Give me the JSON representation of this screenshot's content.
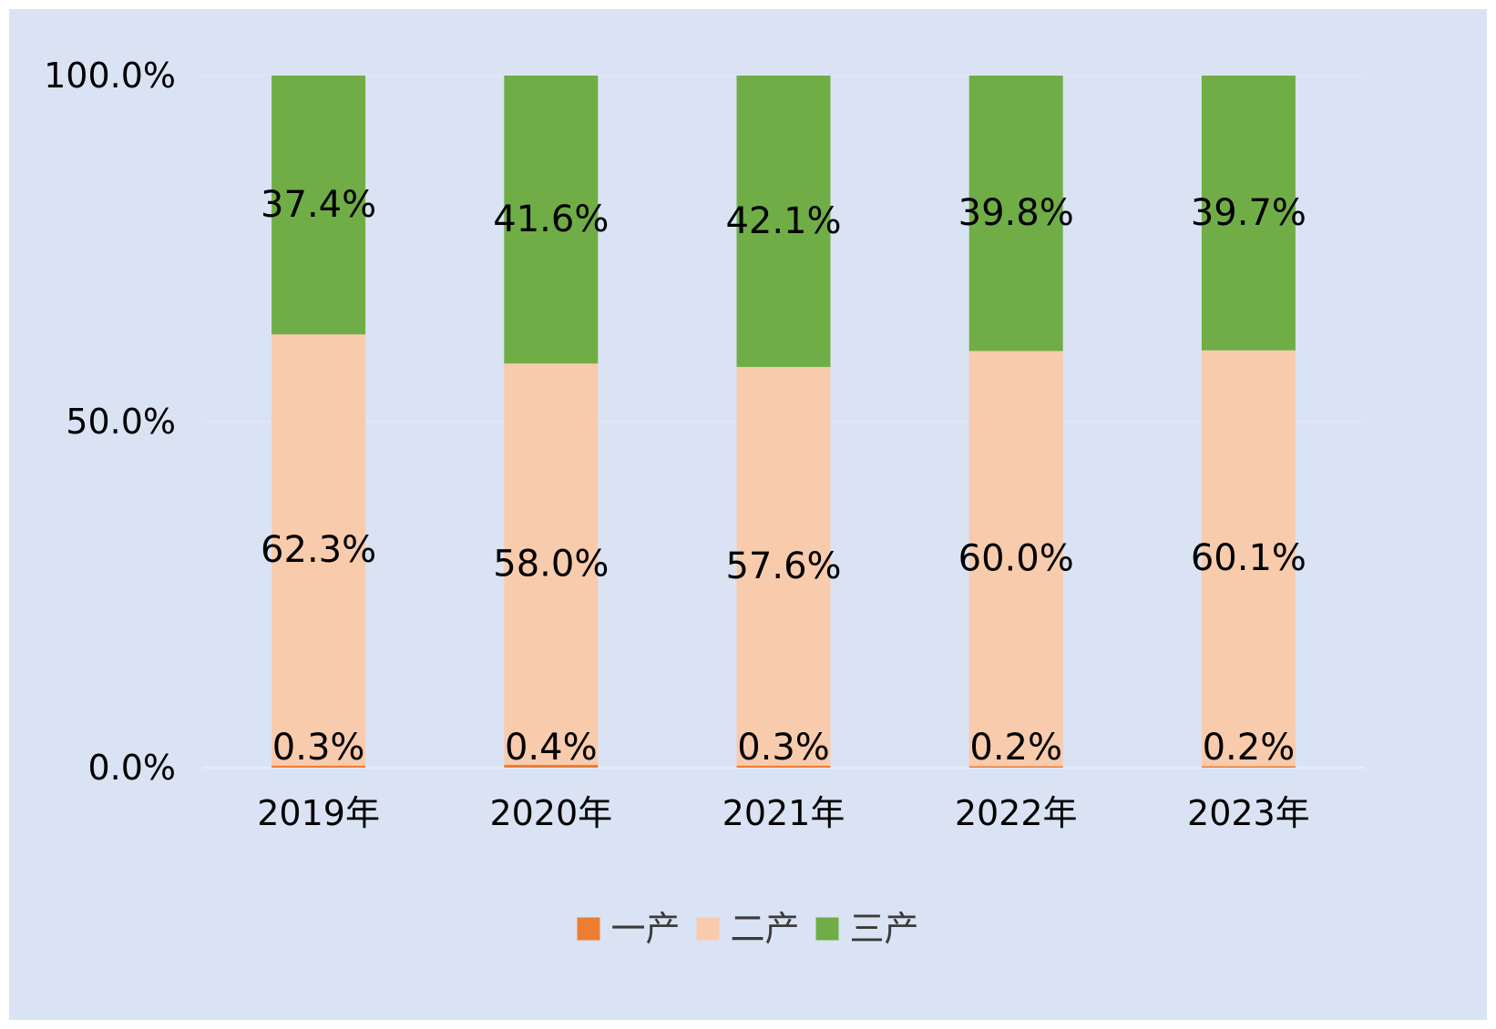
{
  "chart_data": {
    "type": "bar",
    "stacked": true,
    "percent": true,
    "categories": [
      "2019年",
      "2020年",
      "2021年",
      "2022年",
      "2023年"
    ],
    "series": [
      {
        "name": "一产",
        "color": "#ed7d31",
        "values": [
          0.3,
          0.4,
          0.3,
          0.2,
          0.2
        ],
        "labels": [
          "0.3%",
          "0.4%",
          "0.3%",
          "0.2%",
          "0.2%"
        ]
      },
      {
        "name": "二产",
        "color": "#f8cbad",
        "values": [
          62.3,
          58.0,
          57.6,
          60.0,
          60.1
        ],
        "labels": [
          "62.3%",
          "58.0%",
          "57.6%",
          "60.0%",
          "60.1%"
        ]
      },
      {
        "name": "三产",
        "color": "#70ad47",
        "values": [
          37.4,
          41.6,
          42.1,
          39.8,
          39.7
        ],
        "labels": [
          "37.4%",
          "41.6%",
          "42.1%",
          "39.8%",
          "39.7%"
        ]
      }
    ],
    "yticks": [
      {
        "value": 0,
        "label": "0.0%"
      },
      {
        "value": 50,
        "label": "50.0%"
      },
      {
        "value": 100,
        "label": "100.0%"
      }
    ],
    "ylim": [
      0,
      100
    ],
    "title": "",
    "xlabel": "",
    "ylabel": "",
    "legend": {
      "position": "bottom"
    },
    "grid": true,
    "background": "#dae3f3"
  }
}
